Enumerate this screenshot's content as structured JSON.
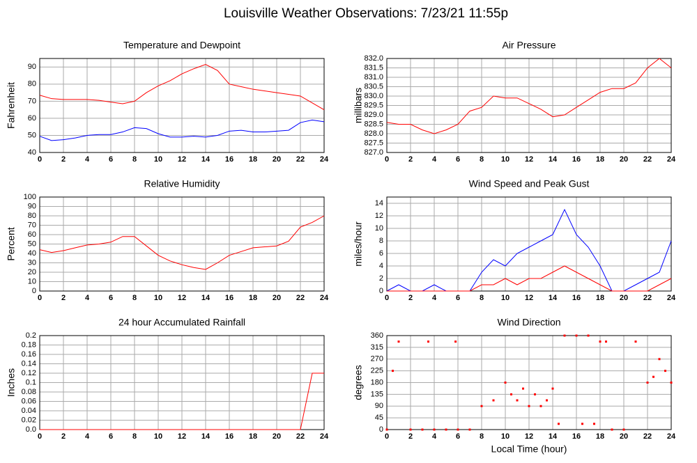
{
  "title": "Louisville Weather Observations: 7/23/21 11:55p",
  "chart_data": [
    {
      "type": "line",
      "title": "Temperature and Dewpoint",
      "ylabel": "Fahrenheit",
      "x": [
        0,
        1,
        2,
        3,
        4,
        5,
        6,
        7,
        8,
        9,
        10,
        11,
        12,
        13,
        14,
        15,
        16,
        17,
        18,
        19,
        20,
        21,
        22,
        23,
        24
      ],
      "xlim": [
        0,
        24
      ],
      "xticks": [
        0,
        2,
        4,
        6,
        8,
        10,
        12,
        14,
        16,
        18,
        20,
        22,
        24
      ],
      "ylim": [
        40,
        95
      ],
      "yticks": [
        40,
        50,
        60,
        70,
        80,
        90
      ],
      "grid": true,
      "series": [
        {
          "color": "#ff0000",
          "values": [
            73.5,
            71.5,
            71,
            71,
            71,
            70.5,
            69.5,
            68.5,
            70,
            75,
            79,
            82,
            86,
            89,
            91.5,
            88,
            80,
            78.5,
            77,
            76,
            75,
            74,
            73,
            69,
            65
          ]
        },
        {
          "color": "#0000ff",
          "values": [
            49.5,
            47,
            47.5,
            48.5,
            50,
            50.5,
            50.5,
            52,
            54.5,
            54,
            51,
            49,
            49,
            49.5,
            49,
            50,
            52.5,
            53,
            52,
            52,
            52.5,
            53,
            57.5,
            59,
            58
          ]
        }
      ]
    },
    {
      "type": "line",
      "title": "Air Pressure",
      "ylabel": "millibars",
      "x": [
        0,
        1,
        2,
        3,
        4,
        5,
        6,
        7,
        8,
        9,
        10,
        11,
        12,
        13,
        14,
        15,
        16,
        17,
        18,
        19,
        20,
        21,
        22,
        23,
        24
      ],
      "xlim": [
        0,
        24
      ],
      "xticks": [
        0,
        2,
        4,
        6,
        8,
        10,
        12,
        14,
        16,
        18,
        20,
        22,
        24
      ],
      "ylim": [
        827,
        832
      ],
      "yticks": [
        {
          "value": 827,
          "label": "827.0"
        },
        827.5,
        {
          "value": 828,
          "label": "828.0"
        },
        828.5,
        {
          "value": 829,
          "label": "829.0"
        },
        829.5,
        {
          "value": 830,
          "label": "830.0"
        },
        830.5,
        {
          "value": 831,
          "label": "831.0"
        },
        831.5,
        {
          "value": 832,
          "label": "832.0"
        }
      ],
      "grid": true,
      "series": [
        {
          "color": "#ff0000",
          "values": [
            828.6,
            828.5,
            828.5,
            828.2,
            828.0,
            828.2,
            828.5,
            829.2,
            829.4,
            830.0,
            829.9,
            829.9,
            829.6,
            829.3,
            828.9,
            829.0,
            829.4,
            829.8,
            830.2,
            830.4,
            830.4,
            830.7,
            831.5,
            832.0,
            831.5
          ]
        }
      ]
    },
    {
      "type": "line",
      "title": "Relative Humidity",
      "ylabel": "Percent",
      "x": [
        0,
        1,
        2,
        3,
        4,
        5,
        6,
        7,
        8,
        9,
        10,
        11,
        12,
        13,
        14,
        15,
        16,
        17,
        18,
        19,
        20,
        21,
        22,
        23,
        24
      ],
      "xlim": [
        0,
        24
      ],
      "xticks": [
        0,
        2,
        4,
        6,
        8,
        10,
        12,
        14,
        16,
        18,
        20,
        22,
        24
      ],
      "ylim": [
        0,
        100
      ],
      "yticks": [
        0,
        10,
        20,
        30,
        40,
        50,
        60,
        70,
        80,
        90,
        100
      ],
      "grid": true,
      "series": [
        {
          "color": "#ff0000",
          "values": [
            44,
            41,
            43,
            46,
            49,
            50,
            52,
            58,
            58,
            48,
            38,
            32,
            28,
            25,
            23,
            30,
            38,
            42,
            46,
            47,
            48,
            53,
            68,
            73,
            80
          ]
        }
      ]
    },
    {
      "type": "line",
      "title": "Wind Speed and Peak Gust",
      "ylabel": "miles/hour",
      "x": [
        0,
        1,
        2,
        3,
        4,
        5,
        6,
        7,
        8,
        9,
        10,
        11,
        12,
        13,
        14,
        15,
        16,
        17,
        18,
        19,
        20,
        21,
        22,
        23,
        24
      ],
      "xlim": [
        0,
        24
      ],
      "xticks": [
        0,
        2,
        4,
        6,
        8,
        10,
        12,
        14,
        16,
        18,
        20,
        22,
        24
      ],
      "ylim": [
        0,
        15
      ],
      "yticks": [
        0,
        2,
        4,
        6,
        8,
        10,
        12,
        14
      ],
      "grid": true,
      "series": [
        {
          "color": "#0000ff",
          "values": [
            0,
            1,
            0,
            0,
            1,
            0,
            0,
            0,
            3,
            5,
            4,
            6,
            7,
            8,
            9,
            13,
            9,
            7,
            4,
            0,
            0,
            1,
            2,
            3,
            8
          ]
        },
        {
          "color": "#ff0000",
          "values": [
            0,
            0,
            0,
            0,
            0,
            0,
            0,
            0,
            1,
            1,
            2,
            1,
            2,
            2,
            3,
            4,
            3,
            2,
            1,
            0,
            0,
            0,
            0,
            1,
            2
          ]
        }
      ]
    },
    {
      "type": "line",
      "title": "24 hour Accumulated Rainfall",
      "ylabel": "Inches",
      "x": [
        0,
        2,
        4,
        6,
        8,
        10,
        12,
        14,
        16,
        18,
        20,
        22,
        23,
        24
      ],
      "xlim": [
        0,
        24
      ],
      "xticks": [
        0,
        2,
        4,
        6,
        8,
        10,
        12,
        14,
        16,
        18,
        20,
        22,
        24
      ],
      "ylim": [
        0,
        0.2
      ],
      "yticks": [
        {
          "value": 0,
          "label": "0.0"
        },
        0.02,
        0.04,
        0.06,
        0.08,
        0.1,
        0.12,
        0.14,
        0.16,
        0.18,
        0.2
      ],
      "grid": true,
      "series": [
        {
          "color": "#ff0000",
          "values": [
            0,
            0,
            0,
            0,
            0,
            0,
            0,
            0,
            0,
            0,
            0,
            0,
            0.12,
            0.12
          ]
        }
      ]
    },
    {
      "type": "scatter",
      "title": "Wind Direction",
      "ylabel": "degrees",
      "xlabel": "Local Time (hour)",
      "x": [
        0,
        0.5,
        1,
        2,
        3,
        3.5,
        4,
        5,
        5.8,
        6,
        7,
        8,
        9,
        10,
        10.5,
        11,
        11.5,
        12,
        12.5,
        13,
        13.5,
        14,
        14.5,
        15,
        16,
        16.5,
        17,
        17.5,
        18,
        18.5,
        19,
        20,
        21,
        22,
        22.5,
        23,
        23.5,
        24
      ],
      "xlim": [
        0,
        24
      ],
      "xticks": [
        0,
        2,
        4,
        6,
        8,
        10,
        12,
        14,
        16,
        18,
        20,
        22,
        24
      ],
      "ylim": [
        0,
        360
      ],
      "yticks": [
        0,
        45,
        90,
        135,
        180,
        225,
        270,
        315,
        360
      ],
      "grid": true,
      "series": [
        {
          "color": "#ff0000",
          "values": [
            0,
            225,
            337,
            0,
            0,
            337,
            0,
            0,
            337,
            0,
            0,
            90,
            112,
            180,
            135,
            112,
            157,
            90,
            135,
            90,
            112,
            157,
            22,
            360,
            360,
            22,
            360,
            22,
            337,
            337,
            0,
            0,
            337,
            180,
            202,
            270,
            225,
            180
          ]
        }
      ]
    }
  ]
}
